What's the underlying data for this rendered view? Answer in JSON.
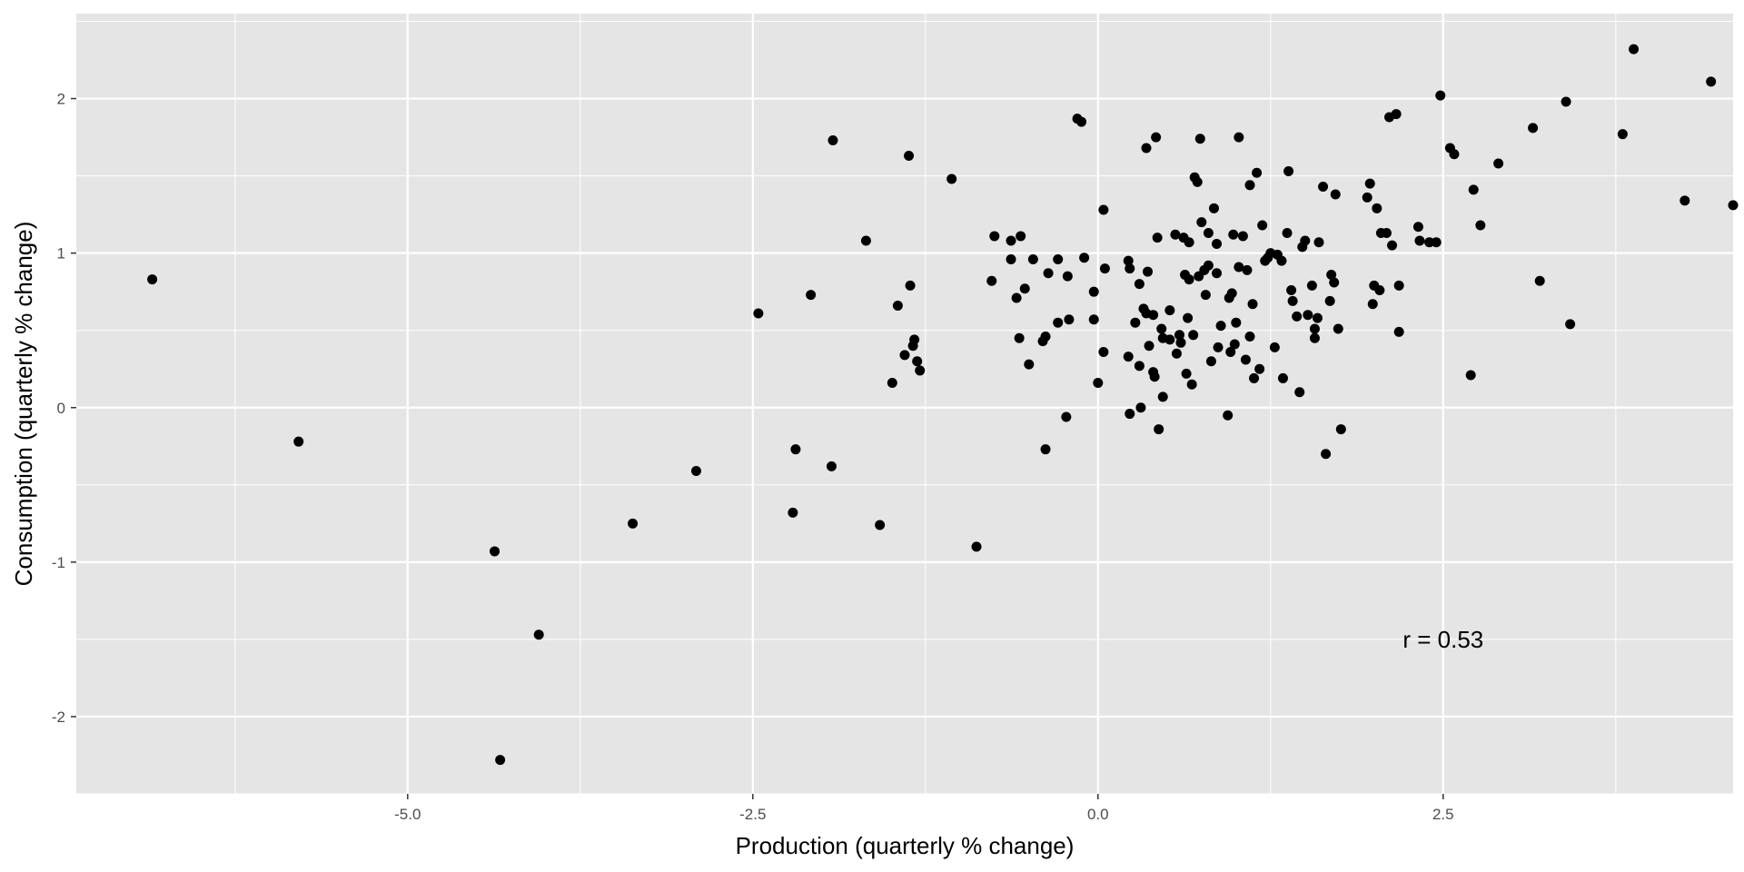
{
  "chart_data": {
    "type": "scatter",
    "title": "",
    "xlabel": "Production (quarterly % change)",
    "ylabel": "Consumption (quarterly % change)",
    "xlim": [
      -7.4,
      4.6
    ],
    "ylim": [
      -2.5,
      2.55
    ],
    "x_ticks": [
      -5.0,
      -2.5,
      0.0,
      2.5
    ],
    "x_tick_labels": [
      "-5.0",
      "-2.5",
      "0.0",
      "2.5"
    ],
    "y_ticks": [
      -2,
      -1,
      0,
      1,
      2
    ],
    "y_tick_labels": [
      "-2",
      "-1",
      "0",
      "1",
      "2"
    ],
    "grid": true,
    "background": "#e5e5e5",
    "grid_color": "#ffffff",
    "point_color": "#000000",
    "annotation": {
      "text": "r = 0.53",
      "x": 2.5,
      "y": -1.5
    },
    "points": [
      [
        -6.85,
        0.83
      ],
      [
        -5.79,
        -0.22
      ],
      [
        -4.37,
        -0.93
      ],
      [
        -4.33,
        -2.28
      ],
      [
        -4.05,
        -1.47
      ],
      [
        -3.37,
        -0.75
      ],
      [
        -2.91,
        -0.41
      ],
      [
        -2.46,
        0.61
      ],
      [
        -2.21,
        -0.68
      ],
      [
        -2.19,
        -0.27
      ],
      [
        -2.08,
        0.73
      ],
      [
        -1.93,
        -0.38
      ],
      [
        -1.92,
        1.73
      ],
      [
        -1.68,
        1.08
      ],
      [
        -1.58,
        -0.76
      ],
      [
        -1.49,
        0.16
      ],
      [
        -1.45,
        0.66
      ],
      [
        -1.4,
        0.34
      ],
      [
        -1.37,
        1.63
      ],
      [
        -1.36,
        0.79
      ],
      [
        -1.33,
        0.44
      ],
      [
        -1.34,
        0.4
      ],
      [
        -1.31,
        0.3
      ],
      [
        -1.29,
        0.24
      ],
      [
        -1.06,
        1.48
      ],
      [
        -0.88,
        -0.9
      ],
      [
        -0.77,
        0.82
      ],
      [
        -0.75,
        1.11
      ],
      [
        -0.63,
        1.08
      ],
      [
        -0.63,
        0.96
      ],
      [
        -0.59,
        0.71
      ],
      [
        -0.57,
        0.45
      ],
      [
        -0.56,
        1.11
      ],
      [
        -0.53,
        0.77
      ],
      [
        -0.5,
        0.28
      ],
      [
        -0.47,
        0.96
      ],
      [
        -0.4,
        0.43
      ],
      [
        -0.38,
        0.46
      ],
      [
        -0.38,
        -0.27
      ],
      [
        -0.36,
        0.87
      ],
      [
        -0.29,
        0.55
      ],
      [
        -0.29,
        0.96
      ],
      [
        -0.23,
        -0.06
      ],
      [
        -0.22,
        0.85
      ],
      [
        -0.21,
        0.57
      ],
      [
        -0.15,
        1.87
      ],
      [
        -0.12,
        1.85
      ],
      [
        -0.1,
        0.97
      ],
      [
        -0.03,
        0.57
      ],
      [
        -0.03,
        0.75
      ],
      [
        0.0,
        0.16
      ],
      [
        0.04,
        1.28
      ],
      [
        0.05,
        0.9
      ],
      [
        0.04,
        0.36
      ],
      [
        0.22,
        0.95
      ],
      [
        0.22,
        0.33
      ],
      [
        0.23,
        0.9
      ],
      [
        0.23,
        -0.04
      ],
      [
        0.27,
        0.55
      ],
      [
        0.3,
        0.27
      ],
      [
        0.3,
        0.8
      ],
      [
        0.31,
        0.0
      ],
      [
        0.33,
        0.64
      ],
      [
        0.35,
        1.68
      ],
      [
        0.35,
        0.61
      ],
      [
        0.36,
        0.88
      ],
      [
        0.37,
        0.4
      ],
      [
        0.4,
        0.6
      ],
      [
        0.4,
        0.23
      ],
      [
        0.41,
        0.2
      ],
      [
        0.42,
        1.75
      ],
      [
        0.43,
        1.1
      ],
      [
        0.44,
        -0.14
      ],
      [
        0.46,
        0.51
      ],
      [
        0.47,
        0.07
      ],
      [
        0.47,
        0.45
      ],
      [
        0.52,
        0.44
      ],
      [
        0.52,
        0.63
      ],
      [
        0.56,
        1.12
      ],
      [
        0.57,
        0.35
      ],
      [
        0.59,
        0.47
      ],
      [
        0.6,
        0.42
      ],
      [
        0.62,
        1.1
      ],
      [
        0.63,
        0.86
      ],
      [
        0.64,
        0.22
      ],
      [
        0.65,
        0.58
      ],
      [
        0.66,
        0.83
      ],
      [
        0.66,
        1.07
      ],
      [
        0.68,
        0.15
      ],
      [
        0.69,
        0.47
      ],
      [
        0.7,
        1.49
      ],
      [
        0.72,
        1.46
      ],
      [
        0.73,
        0.85
      ],
      [
        0.74,
        1.74
      ],
      [
        0.75,
        1.2
      ],
      [
        0.77,
        0.89
      ],
      [
        0.78,
        0.73
      ],
      [
        0.8,
        0.92
      ],
      [
        0.8,
        1.13
      ],
      [
        0.82,
        0.3
      ],
      [
        0.84,
        1.29
      ],
      [
        0.86,
        0.87
      ],
      [
        0.86,
        1.06
      ],
      [
        0.87,
        0.39
      ],
      [
        0.89,
        0.53
      ],
      [
        0.94,
        -0.05
      ],
      [
        0.95,
        0.71
      ],
      [
        0.96,
        0.36
      ],
      [
        0.97,
        0.74
      ],
      [
        0.98,
        1.12
      ],
      [
        0.99,
        0.41
      ],
      [
        1.0,
        0.55
      ],
      [
        1.02,
        1.75
      ],
      [
        1.02,
        0.91
      ],
      [
        1.05,
        1.11
      ],
      [
        1.07,
        0.31
      ],
      [
        1.08,
        0.89
      ],
      [
        1.1,
        1.44
      ],
      [
        1.1,
        0.46
      ],
      [
        1.12,
        0.67
      ],
      [
        1.13,
        0.19
      ],
      [
        1.15,
        1.52
      ],
      [
        1.17,
        0.25
      ],
      [
        1.19,
        1.18
      ],
      [
        1.21,
        0.95
      ],
      [
        1.23,
        0.97
      ],
      [
        1.25,
        1.0
      ],
      [
        1.28,
        0.39
      ],
      [
        1.3,
        0.99
      ],
      [
        1.33,
        0.95
      ],
      [
        1.34,
        0.19
      ],
      [
        1.37,
        1.13
      ],
      [
        1.38,
        1.53
      ],
      [
        1.4,
        0.76
      ],
      [
        1.41,
        0.69
      ],
      [
        1.44,
        0.59
      ],
      [
        1.46,
        0.1
      ],
      [
        1.48,
        1.04
      ],
      [
        1.5,
        1.08
      ],
      [
        1.52,
        0.6
      ],
      [
        1.55,
        0.79
      ],
      [
        1.57,
        0.51
      ],
      [
        1.57,
        0.45
      ],
      [
        1.59,
        0.58
      ],
      [
        1.6,
        1.07
      ],
      [
        1.63,
        1.43
      ],
      [
        1.65,
        -0.3
      ],
      [
        1.68,
        0.69
      ],
      [
        1.69,
        0.86
      ],
      [
        1.71,
        0.81
      ],
      [
        1.72,
        1.38
      ],
      [
        1.74,
        0.51
      ],
      [
        1.76,
        -0.14
      ],
      [
        1.95,
        1.36
      ],
      [
        1.97,
        1.45
      ],
      [
        1.99,
        0.67
      ],
      [
        2.0,
        0.79
      ],
      [
        2.02,
        1.29
      ],
      [
        2.04,
        0.76
      ],
      [
        2.05,
        1.13
      ],
      [
        2.09,
        1.13
      ],
      [
        2.11,
        1.88
      ],
      [
        2.13,
        1.05
      ],
      [
        2.16,
        1.9
      ],
      [
        2.18,
        0.49
      ],
      [
        2.18,
        0.79
      ],
      [
        2.32,
        1.17
      ],
      [
        2.33,
        1.08
      ],
      [
        2.4,
        1.07
      ],
      [
        2.45,
        1.07
      ],
      [
        2.48,
        2.02
      ],
      [
        2.55,
        1.68
      ],
      [
        2.58,
        1.64
      ],
      [
        2.7,
        0.21
      ],
      [
        2.72,
        1.41
      ],
      [
        2.77,
        1.18
      ],
      [
        2.9,
        1.58
      ],
      [
        3.15,
        1.81
      ],
      [
        3.2,
        0.82
      ],
      [
        3.39,
        1.98
      ],
      [
        3.42,
        0.54
      ],
      [
        3.8,
        1.77
      ],
      [
        3.88,
        2.32
      ],
      [
        4.25,
        1.34
      ],
      [
        4.44,
        2.11
      ],
      [
        4.6,
        1.31
      ]
    ]
  }
}
